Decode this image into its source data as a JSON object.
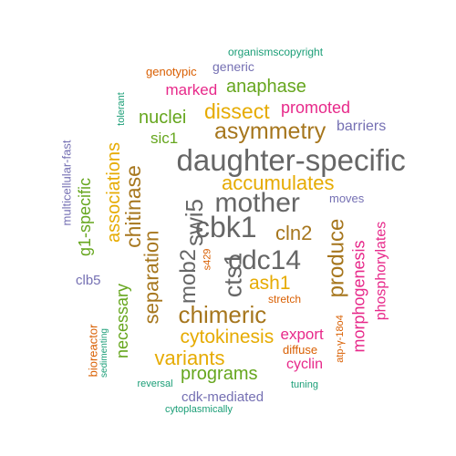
{
  "colors": {
    "teal": "#1b9e77",
    "orange": "#d95f02",
    "purple": "#7570b3",
    "magenta": "#e7298a",
    "green": "#66a61e",
    "gold": "#e6ab02",
    "brown": "#a6761d",
    "gray": "#666666"
  },
  "words": [
    {
      "text": "daughter-specific",
      "color": "gray"
    },
    {
      "text": "mother",
      "color": "gray"
    },
    {
      "text": "cbk1",
      "color": "gray"
    },
    {
      "text": "cdc14",
      "color": "gray"
    },
    {
      "text": "swi5",
      "color": "gray"
    },
    {
      "text": "mob2",
      "color": "gray"
    },
    {
      "text": "cts1",
      "color": "gray"
    },
    {
      "text": "chimeric",
      "color": "brown"
    },
    {
      "text": "asymmetry",
      "color": "brown"
    },
    {
      "text": "accumulates",
      "color": "gold"
    },
    {
      "text": "chitinase",
      "color": "brown"
    },
    {
      "text": "separation",
      "color": "brown"
    },
    {
      "text": "associations",
      "color": "gold"
    },
    {
      "text": "cln2",
      "color": "brown"
    },
    {
      "text": "produce",
      "color": "brown"
    },
    {
      "text": "cytokinesis",
      "color": "gold"
    },
    {
      "text": "ash1",
      "color": "gold"
    },
    {
      "text": "dissect",
      "color": "gold"
    },
    {
      "text": "nuclei",
      "color": "green"
    },
    {
      "text": "anaphase",
      "color": "green"
    },
    {
      "text": "variants",
      "color": "gold"
    },
    {
      "text": "programs",
      "color": "green"
    },
    {
      "text": "necessary",
      "color": "green"
    },
    {
      "text": "g1-specific",
      "color": "green"
    },
    {
      "text": "morphogenesis",
      "color": "magenta"
    },
    {
      "text": "phosphorylates",
      "color": "magenta"
    },
    {
      "text": "marked",
      "color": "magenta"
    },
    {
      "text": "promoted",
      "color": "magenta"
    },
    {
      "text": "export",
      "color": "magenta"
    },
    {
      "text": "cyclin",
      "color": "magenta"
    },
    {
      "text": "sic1",
      "color": "green"
    },
    {
      "text": "barriers",
      "color": "purple"
    },
    {
      "text": "moves",
      "color": "purple"
    },
    {
      "text": "generic",
      "color": "purple"
    },
    {
      "text": "genotypic",
      "color": "orange"
    },
    {
      "text": "organismscopyright",
      "color": "teal"
    },
    {
      "text": "tolerant",
      "color": "teal"
    },
    {
      "text": "multicellular-fast",
      "color": "purple"
    },
    {
      "text": "clb5",
      "color": "purple"
    },
    {
      "text": "cdk-mediated",
      "color": "purple"
    },
    {
      "text": "bioreactor",
      "color": "orange"
    },
    {
      "text": "sedimenting",
      "color": "teal"
    },
    {
      "text": "diffuse",
      "color": "orange"
    },
    {
      "text": "stretch",
      "color": "orange"
    },
    {
      "text": "s429",
      "color": "orange"
    },
    {
      "text": "atp-γ-18o4",
      "color": "orange"
    },
    {
      "text": "reversal",
      "color": "teal"
    },
    {
      "text": "tuning",
      "color": "teal"
    },
    {
      "text": "cytoplasmically",
      "color": "teal"
    }
  ]
}
